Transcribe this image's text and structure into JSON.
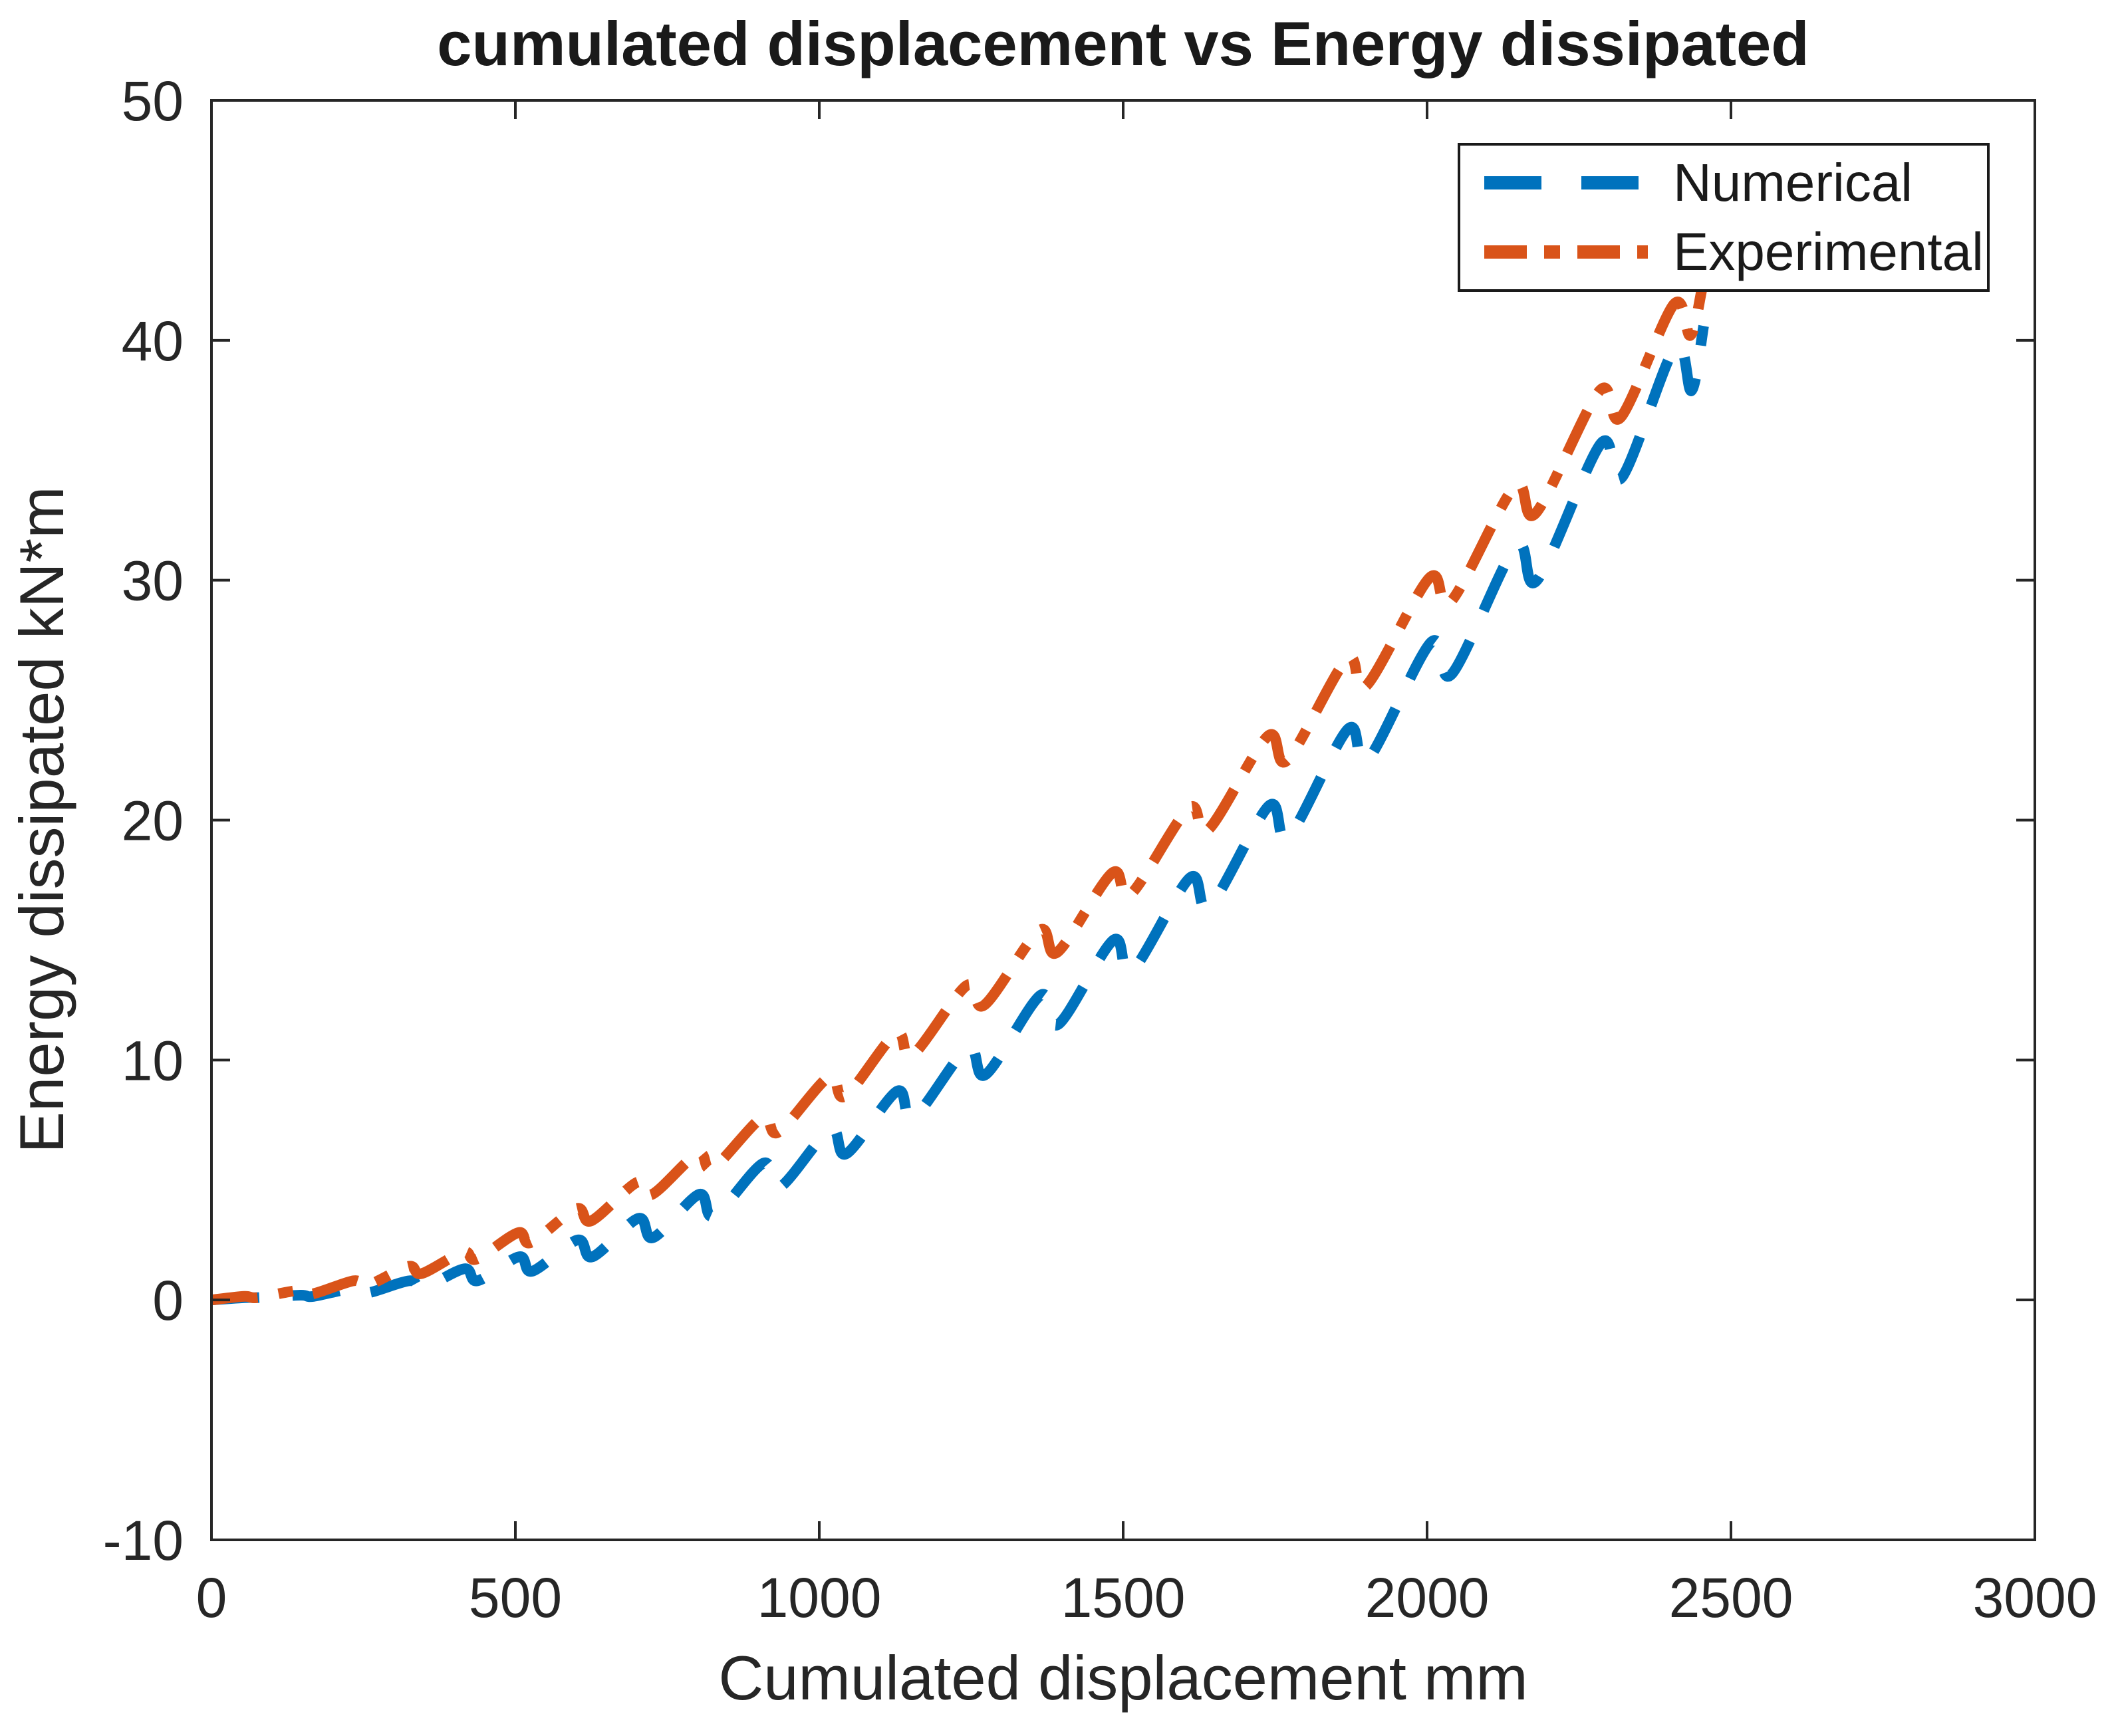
{
  "figure": {
    "background": "#ffffff",
    "axis_color": "#262626",
    "text_color": "#262626"
  },
  "chart_data": {
    "type": "line",
    "title": "cumulated displacement vs Energy dissipated",
    "xlabel": "Cumulated displacement mm",
    "ylabel": "Energy dissipated kN*m",
    "xlim": [
      0,
      3000
    ],
    "ylim": [
      -10,
      50
    ],
    "xticks": [
      0,
      500,
      1000,
      1500,
      2000,
      2500,
      3000
    ],
    "yticks": [
      -10,
      0,
      10,
      20,
      30,
      40,
      50
    ],
    "grid": false,
    "box": true,
    "legend": {
      "position": "top-right",
      "entries": [
        {
          "label": "Numerical",
          "color": "#0072BD",
          "style": "dashed"
        },
        {
          "label": "Experimental",
          "color": "#D95319",
          "style": "dash-dot"
        }
      ]
    },
    "series": [
      {
        "name": "Numerical",
        "color": "#0072BD",
        "line_style": "dashed",
        "line_width": 16,
        "points": [
          [
            0,
            0
          ],
          [
            56,
            0.1
          ],
          [
            78,
            0.1
          ],
          [
            146,
            0.2
          ],
          [
            168,
            0.15
          ],
          [
            236,
            0.5
          ],
          [
            258,
            0.3
          ],
          [
            326,
            0.8
          ],
          [
            348,
            0.5
          ],
          [
            416,
            1.3
          ],
          [
            438,
            0.8
          ],
          [
            506,
            1.8
          ],
          [
            528,
            1.2
          ],
          [
            602,
            2.5
          ],
          [
            627,
            1.8
          ],
          [
            702,
            3.4
          ],
          [
            727,
            2.6
          ],
          [
            802,
            4.4
          ],
          [
            827,
            3.5
          ],
          [
            908,
            5.7
          ],
          [
            935,
            4.7
          ],
          [
            1018,
            7.1
          ],
          [
            1045,
            6.1
          ],
          [
            1128,
            8.7
          ],
          [
            1155,
            7.6
          ],
          [
            1244,
            10.5
          ],
          [
            1274,
            9.4
          ],
          [
            1364,
            12.7
          ],
          [
            1394,
            11.5
          ],
          [
            1484,
            15.0
          ],
          [
            1514,
            13.7
          ],
          [
            1610,
            17.6
          ],
          [
            1642,
            16.4
          ],
          [
            1740,
            20.6
          ],
          [
            1772,
            19.3
          ],
          [
            1870,
            23.8
          ],
          [
            1902,
            22.5
          ],
          [
            2006,
            27.4
          ],
          [
            2041,
            26.1
          ],
          [
            2146,
            31.4
          ],
          [
            2181,
            30.0
          ],
          [
            2286,
            35.7
          ],
          [
            2321,
            34.3
          ],
          [
            2408,
            39.7
          ],
          [
            2435,
            37.9
          ],
          [
            2455,
            40.6
          ]
        ]
      },
      {
        "name": "Experimental",
        "color": "#D95319",
        "line_style": "dash-dot",
        "line_width": 16,
        "points": [
          [
            0,
            0
          ],
          [
            54,
            0.15
          ],
          [
            76,
            0.1
          ],
          [
            144,
            0.4
          ],
          [
            166,
            0.25
          ],
          [
            234,
            0.8
          ],
          [
            256,
            0.6
          ],
          [
            324,
            1.4
          ],
          [
            346,
            1.1
          ],
          [
            414,
            2.0
          ],
          [
            436,
            1.7
          ],
          [
            504,
            2.8
          ],
          [
            526,
            2.4
          ],
          [
            600,
            3.8
          ],
          [
            625,
            3.3
          ],
          [
            700,
            4.9
          ],
          [
            725,
            4.4
          ],
          [
            800,
            6.1
          ],
          [
            825,
            5.5
          ],
          [
            906,
            7.6
          ],
          [
            933,
            7.0
          ],
          [
            1016,
            9.3
          ],
          [
            1043,
            8.5
          ],
          [
            1126,
            11.1
          ],
          [
            1153,
            10.2
          ],
          [
            1242,
            13.1
          ],
          [
            1272,
            12.3
          ],
          [
            1362,
            15.4
          ],
          [
            1392,
            14.5
          ],
          [
            1482,
            17.8
          ],
          [
            1512,
            16.9
          ],
          [
            1608,
            20.5
          ],
          [
            1640,
            19.6
          ],
          [
            1738,
            23.5
          ],
          [
            1770,
            22.5
          ],
          [
            1868,
            26.7
          ],
          [
            1900,
            25.6
          ],
          [
            2004,
            30.1
          ],
          [
            2039,
            29.1
          ],
          [
            2144,
            33.9
          ],
          [
            2179,
            32.8
          ],
          [
            2284,
            37.9
          ],
          [
            2319,
            36.8
          ],
          [
            2406,
            41.5
          ],
          [
            2433,
            40.2
          ],
          [
            2452,
            42.1
          ]
        ]
      }
    ]
  }
}
